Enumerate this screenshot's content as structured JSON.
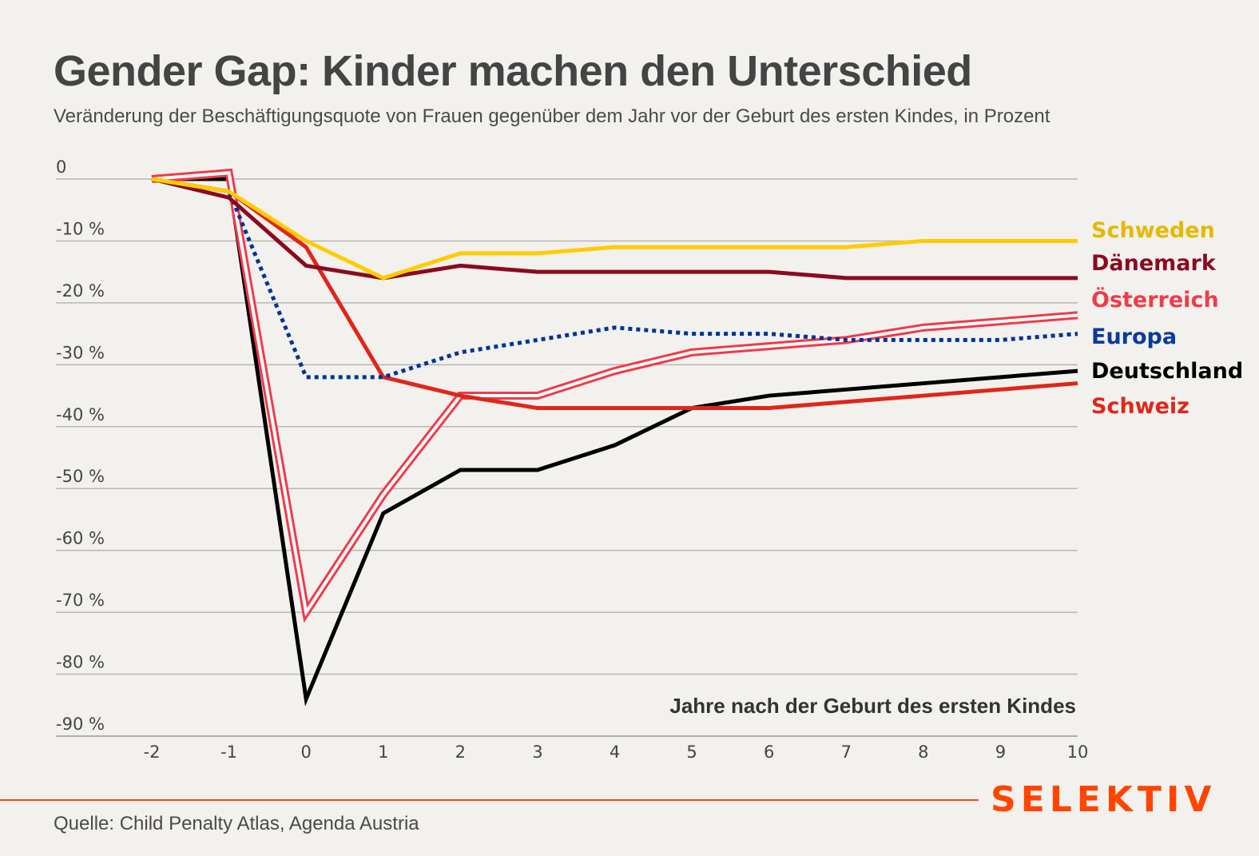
{
  "header": {
    "title": "Gender Gap: Kinder machen den Unterschied",
    "subtitle": "Veränderung der Beschäftigungsquote von Frauen gegenüber dem Jahr vor der Geburt des ersten Kindes, in Prozent"
  },
  "footer": {
    "source": "Quelle: Child Penalty Atlas, Agenda Austria",
    "brand": "SELEKTIV",
    "brand_color": "#ff4500"
  },
  "chart_data": {
    "type": "line",
    "title": "Gender Gap: Kinder machen den Unterschied",
    "subtitle": "Veränderung der Beschäftigungsquote von Frauen gegenüber dem Jahr vor der Geburt des ersten Kindes, in Prozent",
    "xlabel": "Jahre nach der Geburt des ersten Kindes",
    "ylabel": "",
    "x": [
      -2,
      -1,
      0,
      1,
      2,
      3,
      4,
      5,
      6,
      7,
      8,
      9,
      10
    ],
    "xlim": [
      -2,
      10
    ],
    "ylim": [
      -90,
      0
    ],
    "grid": true,
    "legend": "right",
    "y_ticks": [
      {
        "value": 0,
        "label": "0"
      },
      {
        "value": -10,
        "label": "-10 %"
      },
      {
        "value": -20,
        "label": "-20 %"
      },
      {
        "value": -30,
        "label": "-30 %"
      },
      {
        "value": -40,
        "label": "-40 %"
      },
      {
        "value": -50,
        "label": "-50 %"
      },
      {
        "value": -60,
        "label": "-60 %"
      },
      {
        "value": -70,
        "label": "-70 %"
      },
      {
        "value": -80,
        "label": "-80 %"
      },
      {
        "value": -90,
        "label": "-90 %"
      }
    ],
    "x_ticks": [
      "-2",
      "-1",
      "0",
      "1",
      "2",
      "3",
      "4",
      "5",
      "6",
      "7",
      "8",
      "9",
      "10"
    ],
    "series": [
      {
        "name": "Schweden",
        "color": "#ffcc00",
        "label_color": "#e6b800",
        "style": "solid",
        "values": [
          0,
          -2,
          -10,
          -16,
          -12,
          -12,
          -11,
          -11,
          -11,
          -11,
          -10,
          -10,
          -10
        ]
      },
      {
        "name": "Dänemark",
        "color": "#8b0a1e",
        "label_color": "#8b0a1e",
        "style": "solid",
        "values": [
          0,
          -3,
          -14,
          -16,
          -14,
          -15,
          -15,
          -15,
          -15,
          -16,
          -16,
          -16,
          -16
        ]
      },
      {
        "name": "Österreich",
        "color": "#ef3b4a",
        "label_color": "#ef3b4a",
        "style": "double",
        "values": [
          0,
          1,
          -70,
          -51,
          -35,
          -35,
          -31,
          -28,
          -27,
          -26,
          -24,
          -23,
          -22
        ]
      },
      {
        "name": "Europa",
        "color": "#003399",
        "label_color": "#0a3a9e",
        "style": "dotted",
        "values": [
          0,
          -2,
          -32,
          -32,
          -28,
          -26,
          -24,
          -25,
          -25,
          -26,
          -26,
          -26,
          -25
        ]
      },
      {
        "name": "Deutschland",
        "color": "#000000",
        "label_color": "#000000",
        "style": "solid",
        "values": [
          0,
          0,
          -84,
          -54,
          -47,
          -47,
          -43,
          -37,
          -35,
          -34,
          -33,
          -32,
          -31
        ]
      },
      {
        "name": "Schweiz",
        "color": "#e0261b",
        "label_color": "#e0261b",
        "style": "solid",
        "values": [
          0,
          -2,
          -11,
          -32,
          -35,
          -37,
          -37,
          -37,
          -37,
          -36,
          -35,
          -34,
          -33
        ]
      }
    ],
    "draw_order": [
      "Deutschland",
      "Österreich",
      "Schweiz",
      "Europa",
      "Dänemark",
      "Schweden"
    ]
  }
}
